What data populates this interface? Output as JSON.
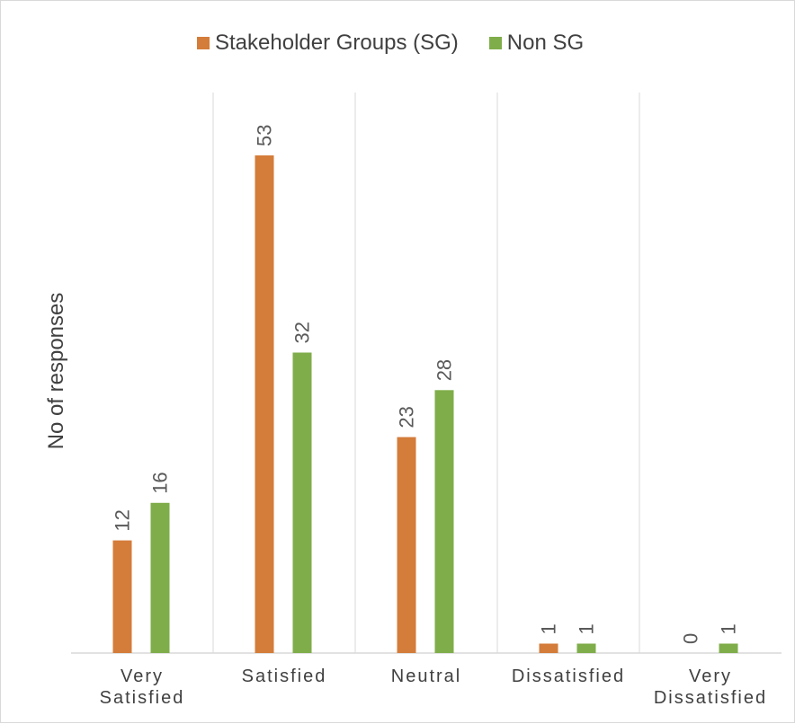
{
  "chart_data": {
    "type": "bar",
    "ylabel": "No of responses",
    "categories": [
      "Very\nSatisfied",
      "Satisfied",
      "Neutral",
      "Dissatisfied",
      "Very\nDissatisfied"
    ],
    "series": [
      {
        "name": "Stakeholder Groups (SG)",
        "color": "#d47c3a",
        "values": [
          12,
          53,
          23,
          1,
          0
        ]
      },
      {
        "name": "Non SG",
        "color": "#7fad4a",
        "values": [
          16,
          32,
          28,
          1,
          1
        ]
      }
    ],
    "ylim": [
      0,
      53
    ],
    "grid": "vertical category separators",
    "legend_position": "top",
    "data_labels": true
  }
}
